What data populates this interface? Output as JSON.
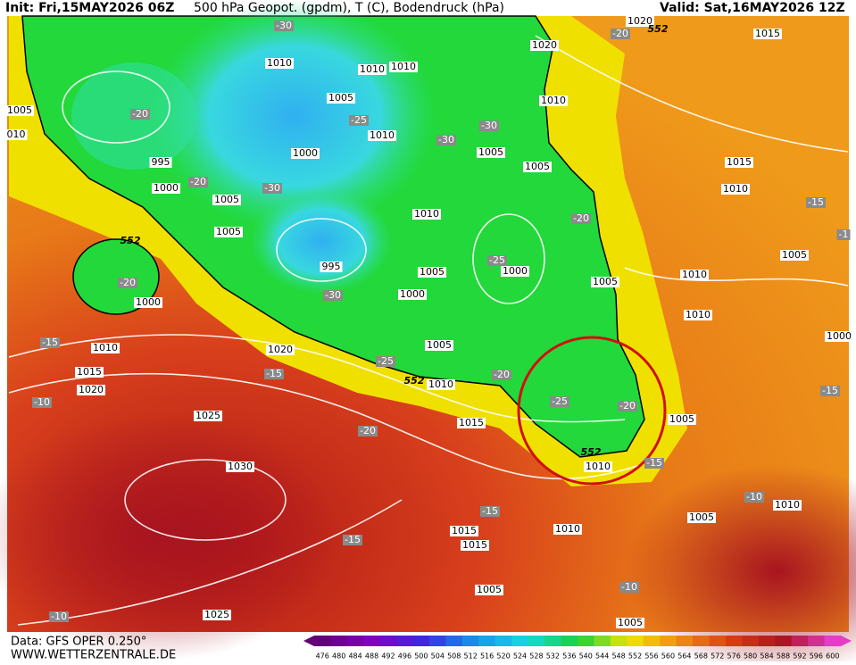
{
  "header": {
    "init": "Init: Fri,15MAY2026 06Z",
    "title": "500 hPa Geopot. (gpdm), T (C), Bodendruck (hPa)",
    "valid": "Valid: Sat,16MAY2026 12Z"
  },
  "footer": {
    "data": "Data: GFS OPER 0.250°",
    "site": "WWW.WETTERZENTRALE.DE"
  },
  "colorbar": {
    "labels": [
      "476",
      "480",
      "484",
      "488",
      "492",
      "496",
      "500",
      "504",
      "508",
      "512",
      "516",
      "520",
      "524",
      "528",
      "532",
      "536",
      "540",
      "544",
      "548",
      "552",
      "556",
      "560",
      "564",
      "568",
      "572",
      "576",
      "580",
      "584",
      "588",
      "592",
      "596",
      "600"
    ]
  },
  "map": {
    "isobar_labels": [
      "1010",
      "1010",
      "1010",
      "1020",
      "1020",
      "1015",
      "1005",
      "010",
      "1005",
      "1010",
      "1005",
      "1000",
      "995",
      "1000",
      "1005",
      "1005",
      "1010",
      "1005",
      "1015",
      "1010",
      "1010",
      "995",
      "1005",
      "1000",
      "1000",
      "1005",
      "1005",
      "1010",
      "1000",
      "1010",
      "1000",
      "1005",
      "1020",
      "1010",
      "1015",
      "1020",
      "1010",
      "1015",
      "1025",
      "1005",
      "1030",
      "1010",
      "1005",
      "1010",
      "1010",
      "1015",
      "1015",
      "1005",
      "1025",
      "1005"
    ],
    "temperature_labels": [
      "-30",
      "-20",
      "-25",
      "-30",
      "-30",
      "-20",
      "-30",
      "-20",
      "-20",
      "-15",
      "-1",
      "-25",
      "-20",
      "-30",
      "-15",
      "-25",
      "-15",
      "-20",
      "-25",
      "-10",
      "-20",
      "-15",
      "-20",
      "-15",
      "-15",
      "-15",
      "-10",
      "-10",
      "-10"
    ],
    "contour_labels": [
      "552",
      "552",
      "552",
      "552"
    ]
  }
}
